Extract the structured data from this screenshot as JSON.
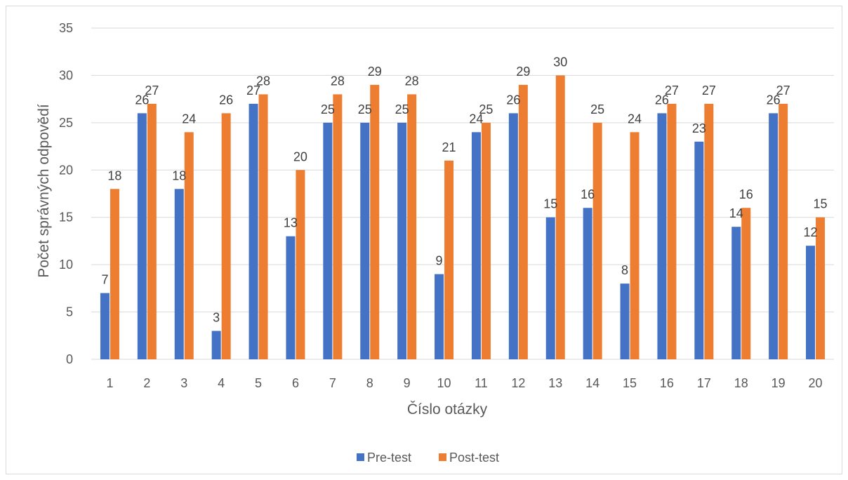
{
  "chart_data": {
    "type": "bar",
    "categories": [
      "1",
      "2",
      "3",
      "4",
      "5",
      "6",
      "7",
      "8",
      "9",
      "10",
      "11",
      "12",
      "13",
      "14",
      "15",
      "16",
      "17",
      "18",
      "19",
      "20"
    ],
    "series": [
      {
        "name": "Pre-test",
        "color": "#4472c4",
        "values": [
          7,
          26,
          18,
          3,
          27,
          13,
          25,
          25,
          25,
          9,
          24,
          26,
          15,
          16,
          8,
          26,
          23,
          14,
          26,
          12
        ]
      },
      {
        "name": "Post-test",
        "color": "#ed7d31",
        "values": [
          18,
          27,
          24,
          26,
          28,
          20,
          28,
          29,
          28,
          21,
          25,
          29,
          30,
          25,
          24,
          27,
          27,
          16,
          27,
          15
        ]
      }
    ],
    "title": "",
    "xlabel": "Číslo otázky",
    "ylabel": "Počet správných odpovědí",
    "ylim": [
      0,
      35
    ],
    "yticks": [
      0,
      5,
      10,
      15,
      20,
      25,
      30,
      35
    ],
    "grid": true,
    "gridline_color": "#d9d9d9",
    "legend_position": "bottom",
    "data_labels": true
  }
}
